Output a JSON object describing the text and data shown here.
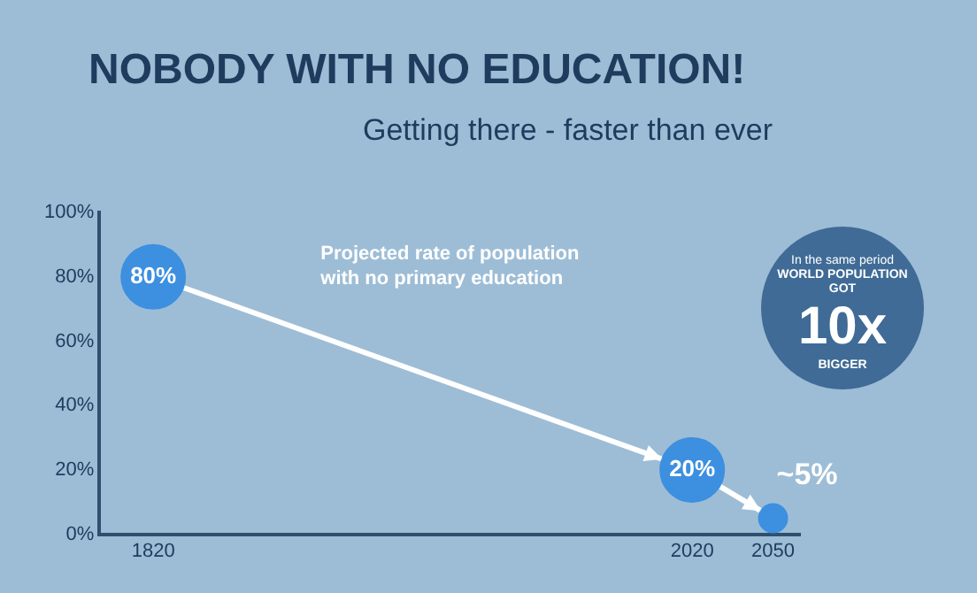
{
  "chart_data": {
    "type": "line",
    "title": "NOBODY WITH NO EDUCATION!",
    "subtitle": "Getting there - faster than ever",
    "x": [
      1820,
      2020,
      2050
    ],
    "series": [
      {
        "name": "Projected rate of population with no primary education",
        "color": "#3d8fe0",
        "values": [
          80,
          20,
          5
        ],
        "value_labels": [
          "80%",
          "20%",
          "~5%"
        ]
      }
    ],
    "xlim": [
      1800,
      2060
    ],
    "xticks": [
      1820,
      2020,
      2050
    ],
    "ylim": [
      0,
      100
    ],
    "yticks": [
      {
        "value": 0,
        "label": "0%"
      },
      {
        "value": 20,
        "label": "20%"
      },
      {
        "value": 40,
        "label": "40%"
      },
      {
        "value": 60,
        "label": "60%"
      },
      {
        "value": 80,
        "label": "80%"
      },
      {
        "value": 100,
        "label": "100%"
      }
    ],
    "annotations": [
      "In the same period",
      "WORLD POPULATION GOT",
      "10x",
      "BIGGER"
    ],
    "grid": false,
    "legend": false,
    "marker": "circle",
    "line_style": "solid"
  }
}
